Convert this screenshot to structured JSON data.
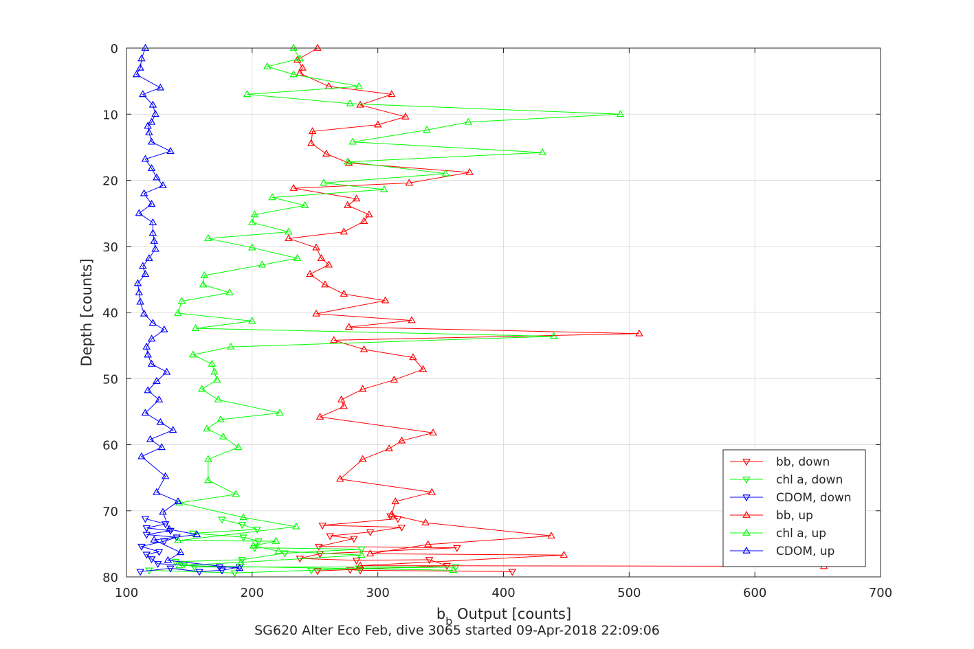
{
  "chart_data": {
    "type": "line",
    "xlabel_main": "b",
    "xlabel_sub": "b",
    "xlabel_rest": " Output [counts]",
    "ylabel": "Depth [counts]",
    "caption": "SG620 Alter Eco Feb, dive 3065 started 09-Apr-2018 22:09:06",
    "xlim": [
      100,
      700
    ],
    "ylim": [
      0,
      80
    ],
    "y_reversed": true,
    "grid": true,
    "legend_position": "bottom-right",
    "xticks": [
      "100",
      "200",
      "300",
      "400",
      "500",
      "600",
      "700"
    ],
    "yticks": [
      "0",
      "10",
      "20",
      "30",
      "40",
      "50",
      "60",
      "70",
      "80"
    ],
    "series": [
      {
        "name": "bb, down",
        "color": "#ff0000",
        "marker": "triangle-down",
        "points": [
          [
            407,
            79.2
          ],
          [
            286,
            79
          ],
          [
            278,
            78.9
          ],
          [
            252,
            79.1
          ],
          [
            355,
            78.3
          ],
          [
            341,
            77.4
          ],
          [
            283,
            77.5
          ],
          [
            238,
            77.2
          ],
          [
            254,
            76.5
          ],
          [
            363,
            75.6
          ],
          [
            253,
            75.4
          ],
          [
            281,
            74.2
          ],
          [
            262,
            73.8
          ],
          [
            294,
            73.2
          ],
          [
            319,
            72.5
          ],
          [
            256,
            72.2
          ],
          [
            316,
            71.2
          ],
          [
            310,
            70.8
          ]
        ]
      },
      {
        "name": "chl a, down",
        "color": "#00ff00",
        "marker": "triangle-down",
        "points": [
          [
            118,
            79
          ],
          [
            186,
            79.4
          ],
          [
            247,
            79
          ],
          [
            285,
            78.7
          ],
          [
            362,
            78.5
          ],
          [
            154,
            78.5
          ],
          [
            146,
            78
          ],
          [
            139,
            77.7
          ],
          [
            192,
            77.4
          ],
          [
            226,
            76.4
          ],
          [
            287,
            75.8
          ],
          [
            202,
            75.6
          ],
          [
            205,
            74.6
          ],
          [
            193,
            74
          ],
          [
            153,
            73.4
          ],
          [
            204,
            72.8
          ],
          [
            192,
            72.1
          ],
          [
            176,
            71.3
          ]
        ]
      },
      {
        "name": "CDOM, down",
        "color": "#0000ff",
        "marker": "triangle-down",
        "points": [
          [
            111,
            79.2
          ],
          [
            135,
            78.7
          ],
          [
            158,
            79.2
          ],
          [
            176,
            79
          ],
          [
            190,
            78.5
          ],
          [
            174,
            78.5
          ],
          [
            125,
            78
          ],
          [
            120,
            77.3
          ],
          [
            116,
            76.6
          ],
          [
            126,
            76.2
          ],
          [
            112,
            75.4
          ],
          [
            130,
            74.6
          ],
          [
            140,
            74
          ],
          [
            116,
            73.6
          ],
          [
            135,
            73
          ],
          [
            116,
            72.6
          ],
          [
            131,
            72
          ],
          [
            115,
            71.2
          ]
        ]
      },
      {
        "name": "bb, up",
        "color": "#ff0000",
        "marker": "triangle-up",
        "points": [
          [
            655,
            78.4
          ],
          [
            286,
            78.3
          ],
          [
            448,
            76.7
          ],
          [
            294,
            76.5
          ],
          [
            340,
            75.1
          ],
          [
            438,
            73.8
          ],
          [
            338,
            71.8
          ],
          [
            311,
            70.6
          ],
          [
            314,
            68.6
          ],
          [
            343,
            67.2
          ],
          [
            270,
            65.2
          ],
          [
            288,
            62.2
          ],
          [
            309,
            60.6
          ],
          [
            319,
            59.4
          ],
          [
            344,
            58.2
          ],
          [
            254,
            55.8
          ],
          [
            273,
            54.2
          ],
          [
            271,
            53.2
          ],
          [
            288,
            51.6
          ],
          [
            313,
            50.2
          ],
          [
            336,
            48.6
          ],
          [
            328,
            46.8
          ],
          [
            289,
            45.6
          ],
          [
            265,
            44.2
          ],
          [
            508,
            43.2
          ],
          [
            277,
            42.2
          ],
          [
            327,
            41.2
          ],
          [
            251,
            40.2
          ],
          [
            306,
            38.2
          ],
          [
            273,
            37.2
          ],
          [
            258,
            35.8
          ],
          [
            246,
            34.2
          ],
          [
            261,
            32.8
          ],
          [
            255,
            31.8
          ],
          [
            251,
            30.2
          ],
          [
            229,
            28.8
          ],
          [
            273,
            27.8
          ],
          [
            289,
            26.2
          ],
          [
            293,
            25.2
          ],
          [
            276,
            23.8
          ],
          [
            283,
            22.8
          ],
          [
            233,
            21.2
          ],
          [
            325,
            20.4
          ],
          [
            373,
            18.8
          ],
          [
            277,
            17.4
          ],
          [
            259,
            16
          ],
          [
            247,
            14.4
          ],
          [
            248,
            12.6
          ],
          [
            300,
            11.6
          ],
          [
            322,
            10.4
          ],
          [
            286,
            8.6
          ],
          [
            311,
            7.0
          ],
          [
            261,
            5.8
          ],
          [
            238,
            3.8
          ],
          [
            240,
            3.0
          ],
          [
            236,
            1.8
          ],
          [
            252,
            0
          ]
        ]
      },
      {
        "name": "chl a, up",
        "color": "#00ff00",
        "marker": "triangle-up",
        "points": [
          [
            360,
            79
          ],
          [
            142,
            78.3
          ],
          [
            191,
            77.8
          ],
          [
            287,
            76.7
          ],
          [
            221,
            76.1
          ],
          [
            201,
            75.3
          ],
          [
            219,
            74.6
          ],
          [
            141,
            74.5
          ],
          [
            235,
            72.4
          ],
          [
            193,
            71
          ],
          [
            142,
            68.8
          ],
          [
            187,
            67.5
          ],
          [
            165,
            65.4
          ],
          [
            165,
            62.2
          ],
          [
            189,
            60.4
          ],
          [
            177,
            58.8
          ],
          [
            164,
            57.6
          ],
          [
            175,
            56.2
          ],
          [
            222,
            55.2
          ],
          [
            173,
            53.2
          ],
          [
            160,
            51.6
          ],
          [
            172,
            50.2
          ],
          [
            170,
            49.0
          ],
          [
            168,
            47.8
          ],
          [
            153,
            46.4
          ],
          [
            183,
            45.2
          ],
          [
            440,
            43.6
          ],
          [
            155,
            42.4
          ],
          [
            200,
            41.3
          ],
          [
            141,
            40.1
          ],
          [
            144,
            38.3
          ],
          [
            182,
            37.0
          ],
          [
            161,
            35.8
          ],
          [
            162,
            34.4
          ],
          [
            208,
            32.8
          ],
          [
            236,
            31.8
          ],
          [
            200,
            30.2
          ],
          [
            165,
            28.8
          ],
          [
            229,
            27.8
          ],
          [
            200,
            26.4
          ],
          [
            202,
            25.2
          ],
          [
            242,
            23.8
          ],
          [
            216,
            22.6
          ],
          [
            305,
            21.4
          ],
          [
            257,
            20.4
          ],
          [
            354,
            19.0
          ],
          [
            276,
            17.2
          ],
          [
            431,
            15.8
          ],
          [
            280,
            14.2
          ],
          [
            339,
            12.4
          ],
          [
            372,
            11.2
          ],
          [
            493,
            10.0
          ],
          [
            278,
            8.4
          ],
          [
            196,
            7.0
          ],
          [
            285,
            5.8
          ],
          [
            233,
            4.0
          ],
          [
            212,
            2.8
          ],
          [
            238,
            1.6
          ],
          [
            233,
            0
          ]
        ]
      },
      {
        "name": "CDOM, up",
        "color": "#0000ff",
        "marker": "triangle-up",
        "points": [
          [
            190,
            78.7
          ],
          [
            133,
            77.5
          ],
          [
            143,
            76.3
          ],
          [
            122,
            74.4
          ],
          [
            156,
            73.6
          ],
          [
            134,
            72.8
          ],
          [
            129,
            70.2
          ],
          [
            141,
            68.6
          ],
          [
            124,
            67.2
          ],
          [
            131,
            64.8
          ],
          [
            112,
            61.8
          ],
          [
            128,
            60.4
          ],
          [
            119,
            59.2
          ],
          [
            137,
            57.8
          ],
          [
            127,
            56.6
          ],
          [
            115,
            55.2
          ],
          [
            126,
            53.2
          ],
          [
            117,
            51.8
          ],
          [
            124,
            50.4
          ],
          [
            132,
            49.0
          ],
          [
            120,
            47.8
          ],
          [
            117,
            46.4
          ],
          [
            116,
            45.2
          ],
          [
            120,
            44.0
          ],
          [
            130,
            42.6
          ],
          [
            121,
            41.6
          ],
          [
            114,
            40.2
          ],
          [
            111,
            38.4
          ],
          [
            110,
            37.0
          ],
          [
            109,
            35.6
          ],
          [
            115,
            34.2
          ],
          [
            113,
            33.0
          ],
          [
            118,
            31.8
          ],
          [
            123,
            30.4
          ],
          [
            122,
            29.2
          ],
          [
            121,
            28.0
          ],
          [
            121,
            26.4
          ],
          [
            110,
            25.0
          ],
          [
            120,
            23.6
          ],
          [
            114,
            22.0
          ],
          [
            129,
            20.8
          ],
          [
            124,
            19.6
          ],
          [
            120,
            18.2
          ],
          [
            115,
            16.8
          ],
          [
            135,
            15.6
          ],
          [
            120,
            14.2
          ],
          [
            118,
            12.8
          ],
          [
            117,
            11.8
          ],
          [
            120,
            11.2
          ],
          [
            123,
            10.0
          ],
          [
            121,
            8.6
          ],
          [
            113,
            7.0
          ],
          [
            127,
            6.0
          ],
          [
            108,
            4.0
          ],
          [
            111,
            3.0
          ],
          [
            112,
            1.6
          ],
          [
            115,
            0
          ]
        ]
      }
    ]
  }
}
